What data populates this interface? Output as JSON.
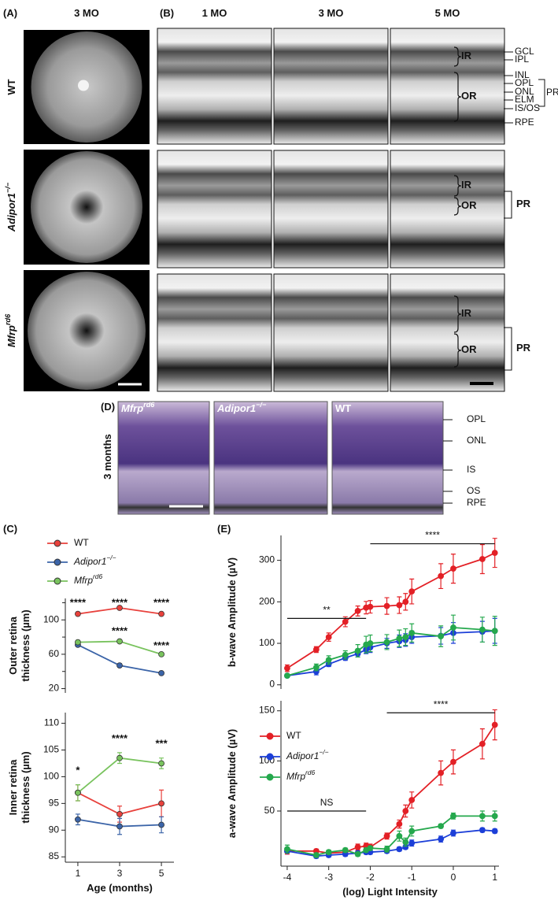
{
  "panel_a": {
    "label": "(A)",
    "column": "3 MO",
    "rows": [
      {
        "text": "WT"
      },
      {
        "text": "Adipor1",
        "sup": "−/−"
      },
      {
        "text": "Mfrp",
        "sup": "rd6"
      }
    ]
  },
  "panel_b": {
    "label": "(B)",
    "columns": [
      "1 MO",
      "3 MO",
      "5 MO"
    ],
    "rows": [
      {
        "layers": [
          "GCL",
          "IPL",
          "INL",
          "OPL",
          "ONL",
          "ELM",
          "IS/OS",
          "RPE"
        ],
        "braces": [
          "IR",
          "OR"
        ],
        "bracket": "PR"
      },
      {
        "braces": [
          "IR",
          "OR"
        ],
        "bracket": "PR"
      },
      {
        "braces": [
          "IR",
          "OR"
        ],
        "bracket": "PR"
      }
    ]
  },
  "panel_c": {
    "label": "(C)"
  },
  "panel_d": {
    "label": "(D)",
    "row": "3 months",
    "images": [
      {
        "text": "Mfrp",
        "sup": "rd6"
      },
      {
        "text": "Adipor1",
        "sup": "−/−"
      },
      {
        "text": "WT"
      }
    ],
    "layers": [
      "OPL",
      "ONL",
      "IS",
      "OS",
      "RPE"
    ]
  },
  "panel_e": {
    "label": "(E)"
  },
  "chart_data": [
    {
      "type": "line",
      "ylabel": [
        "Outer retina",
        "thickness (µm)"
      ],
      "x": [
        1,
        3,
        5
      ],
      "xlim": [
        0.4,
        5.6
      ],
      "ylim": [
        15,
        125
      ],
      "yticks": [
        20,
        60,
        100
      ],
      "yminorticks": [
        40,
        80,
        120
      ],
      "series": [
        {
          "name": "WT",
          "color": "#e8413c",
          "values": [
            107,
            114,
            107
          ],
          "errors": [
            1,
            1,
            1.5
          ]
        },
        {
          "name": "Adipor1",
          "name_sup": "−/−",
          "color": "#3b64a8",
          "values": [
            71,
            47,
            38
          ],
          "errors": [
            1,
            2,
            1.5
          ]
        },
        {
          "name": "Mfrp",
          "name_sup": "rd6",
          "color": "#79c35e",
          "values": [
            74,
            75,
            60
          ],
          "errors": [
            2,
            1.5,
            1.5
          ]
        }
      ],
      "annotations": [
        {
          "text": "****",
          "x": 1,
          "y": 119
        },
        {
          "text": "****",
          "x": 3,
          "y": 119
        },
        {
          "text": "****",
          "x": 5,
          "y": 119
        },
        {
          "text": "****",
          "x": 3,
          "y": 86
        },
        {
          "text": "****",
          "x": 5,
          "y": 69
        }
      ]
    },
    {
      "type": "line",
      "ylabel": [
        "Inner retina",
        "thickness (µm)"
      ],
      "xlabel": "Age (months)",
      "x": [
        1,
        3,
        5
      ],
      "xlim": [
        0.4,
        5.6
      ],
      "xticks": [
        1,
        3,
        5
      ],
      "ylim": [
        84,
        112
      ],
      "yticks": [
        85,
        90,
        95,
        100,
        105,
        110
      ],
      "series": [
        {
          "color": "#e8413c",
          "values": [
            97,
            93,
            95
          ],
          "errors": [
            1.5,
            1.5,
            2.5
          ]
        },
        {
          "color": "#3b64a8",
          "values": [
            92,
            90.7,
            91
          ],
          "errors": [
            1,
            1.5,
            1.5
          ]
        },
        {
          "color": "#79c35e",
          "values": [
            97,
            103.5,
            102.5
          ],
          "errors": [
            1.5,
            1,
            1
          ]
        }
      ],
      "annotations": [
        {
          "text": "*",
          "x": 1,
          "y": 101
        },
        {
          "text": "****",
          "x": 3,
          "y": 107
        },
        {
          "text": "***",
          "x": 5,
          "y": 106
        }
      ]
    },
    {
      "type": "line",
      "ylabel": [
        "b-wave Amplitude (µV)"
      ],
      "x": [
        -4,
        -3.3,
        -3,
        -2.6,
        -2.3,
        -2.1,
        -2,
        -1.6,
        -1.3,
        -1.15,
        -1,
        -0.3,
        0,
        0.7,
        1
      ],
      "xlim": [
        -4.15,
        1.1
      ],
      "ylim": [
        -10,
        360
      ],
      "yticks": [
        0,
        100,
        200,
        300
      ],
      "series": [
        {
          "color": "#e32026",
          "values": [
            40,
            85,
            115,
            152,
            178,
            186,
            188,
            190,
            192,
            200,
            225,
            262,
            280,
            303,
            318
          ],
          "errors": [
            8,
            7,
            10,
            12,
            12,
            15,
            15,
            20,
            20,
            20,
            30,
            30,
            35,
            35,
            35
          ]
        },
        {
          "color": "#1c3fd8",
          "values": [
            22,
            32,
            50,
            65,
            75,
            85,
            90,
            100,
            105,
            108,
            115,
            118,
            125,
            128,
            130
          ],
          "errors": [
            4,
            8,
            6,
            6,
            8,
            10,
            12,
            12,
            15,
            15,
            15,
            20,
            25,
            25,
            30
          ]
        },
        {
          "color": "#25a84d",
          "values": [
            22,
            42,
            60,
            72,
            82,
            97,
            100,
            103,
            112,
            115,
            125,
            117,
            138,
            133,
            130
          ],
          "errors": [
            4,
            8,
            10,
            10,
            15,
            20,
            20,
            18,
            20,
            20,
            22,
            25,
            30,
            30,
            35
          ]
        }
      ],
      "annotations": [
        {
          "text": "**",
          "x": [
            -4,
            -2.1
          ],
          "y": 160
        },
        {
          "text": "****",
          "x": [
            -2,
            1
          ],
          "y": 340
        }
      ]
    },
    {
      "type": "line",
      "ylabel": [
        "a-wave Amplitude (µV)"
      ],
      "xlabel": "(log) Light Intensity",
      "x": [
        -4,
        -3.3,
        -3,
        -2.6,
        -2.3,
        -2.1,
        -2,
        -1.6,
        -1.3,
        -1.15,
        -1,
        -0.3,
        0,
        0.7,
        1
      ],
      "xlim": [
        -4.15,
        1.1
      ],
      "xticks": [
        -4,
        -3,
        -2,
        -1,
        0,
        1
      ],
      "ylim": [
        -5,
        160
      ],
      "yticks": [
        50,
        100,
        150
      ],
      "series": [
        {
          "name": "WT",
          "color": "#e32026",
          "values": [
            10,
            10,
            8,
            9,
            14,
            15,
            14,
            25,
            37,
            50,
            61,
            88,
            99,
            117,
            136
          ],
          "errors": [
            3,
            2,
            2,
            2,
            3,
            3,
            3,
            3,
            4,
            6,
            8,
            12,
            12,
            15,
            15
          ]
        },
        {
          "name": "Adipor1",
          "name_sup": "−/−",
          "color": "#1c3fd8",
          "values": [
            10,
            5,
            6,
            7,
            8,
            9,
            9,
            10,
            12,
            14,
            18,
            22,
            28,
            31,
            30
          ],
          "errors": [
            2,
            2,
            2,
            2,
            2,
            2,
            2,
            2,
            2,
            2,
            3,
            3,
            3,
            2,
            2
          ]
        },
        {
          "name": "Mfrp",
          "name_sup": "rd6",
          "color": "#25a84d",
          "values": [
            12,
            6,
            9,
            11,
            7,
            11,
            13,
            12,
            25,
            19,
            30,
            35,
            45,
            45,
            45
          ],
          "errors": [
            4,
            2,
            2,
            2,
            2,
            2,
            2,
            3,
            5,
            4,
            5,
            2,
            3,
            5,
            5
          ]
        }
      ],
      "annotations": [
        {
          "text": "NS",
          "x": [
            -4,
            -2.1
          ],
          "y": 50
        },
        {
          "text": "****",
          "x": [
            -1.6,
            1
          ],
          "y": 148
        }
      ]
    }
  ]
}
